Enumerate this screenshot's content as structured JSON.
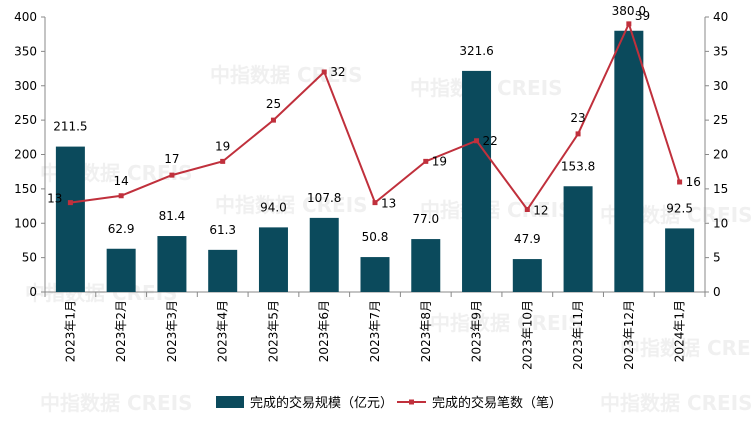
{
  "chart_data": {
    "type": "bar+line",
    "watermark": "中指数据 CREIS",
    "categories": [
      "2023年1月",
      "2023年2月",
      "2023年3月",
      "2023年4月",
      "2023年5月",
      "2023年6月",
      "2023年7月",
      "2023年8月",
      "2023年9月",
      "2023年10月",
      "2023年11月",
      "2023年12月",
      "2024年1月"
    ],
    "series": [
      {
        "name": "完成的交易规模（亿元）",
        "type": "bar",
        "axis": "left",
        "color": "#0b4a5c",
        "values": [
          211.5,
          62.9,
          81.4,
          61.3,
          94.0,
          107.8,
          50.8,
          77.0,
          321.6,
          47.9,
          153.8,
          380.0,
          92.5
        ],
        "labels": [
          "211.5",
          "62.9",
          "81.4",
          "61.3",
          "94.0",
          "107.8",
          "50.8",
          "77.0",
          "321.6",
          "47.9",
          "153.8",
          "380.0",
          "92.5"
        ]
      },
      {
        "name": "完成的交易笔数（笔）",
        "type": "line",
        "axis": "right",
        "color": "#c0303c",
        "values": [
          13,
          14,
          17,
          19,
          25,
          32,
          13,
          19,
          22,
          12,
          23,
          39,
          16
        ],
        "labels": [
          "13",
          "14",
          "17",
          "19",
          "25",
          "32",
          "13",
          "19",
          "22",
          "12",
          "23",
          "39",
          "16"
        ]
      }
    ],
    "y_left": {
      "min": 0,
      "max": 400,
      "ticks": [
        "0",
        "50",
        "100",
        "150",
        "200",
        "250",
        "300",
        "350",
        "400"
      ]
    },
    "y_right": {
      "min": 0,
      "max": 40,
      "ticks": [
        "0",
        "5",
        "10",
        "15",
        "20",
        "25",
        "30",
        "35",
        "40"
      ]
    },
    "legend_position": "bottom-center"
  }
}
